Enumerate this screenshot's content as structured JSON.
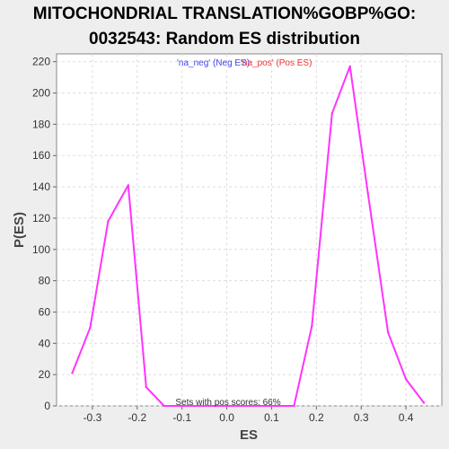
{
  "chart_data": {
    "type": "line",
    "title_lines": [
      "MITOCHONDRIAL TRANSLATION%GOBP%GO:",
      "0032543: Random ES distribution"
    ],
    "xlabel": "ES",
    "ylabel": "P(ES)",
    "xlim": [
      -0.38,
      0.48
    ],
    "ylim": [
      0,
      225
    ],
    "x_ticks": [
      -0.3,
      -0.2,
      -0.1,
      0.0,
      0.1,
      0.2,
      0.3,
      0.4
    ],
    "x_tick_labels": [
      "-0.3",
      "-0.2",
      "-0.1",
      "0.0",
      "0.1",
      "0.2",
      "0.3",
      "0.4"
    ],
    "y_ticks": [
      0,
      20,
      40,
      60,
      80,
      100,
      120,
      140,
      160,
      180,
      200,
      220
    ],
    "y_tick_labels": [
      "0",
      "20",
      "40",
      "60",
      "80",
      "100",
      "120",
      "140",
      "160",
      "180",
      "200",
      "220"
    ],
    "grid": true,
    "series": [
      {
        "color": "#ff33ff",
        "x": [
          -0.345,
          -0.305,
          -0.265,
          -0.22,
          -0.18,
          -0.14,
          -0.1,
          -0.06,
          -0.02,
          0.02,
          0.06,
          0.1,
          0.15,
          0.19,
          0.235,
          0.275,
          0.315,
          0.36,
          0.4,
          0.44
        ],
        "y": [
          21,
          50,
          118,
          141,
          12,
          0,
          0,
          0,
          0,
          0,
          0,
          0,
          0,
          51,
          187,
          217,
          136,
          47,
          17,
          2
        ]
      }
    ],
    "legend": [
      {
        "text": "'na_neg' (Neg ES)",
        "color": "#4444ee"
      },
      {
        "text": "'na_pos' (Pos ES)",
        "color": "#ee3333"
      }
    ],
    "legend_placement": "top-center",
    "annotation": "Sets with pos scores: 66%"
  }
}
